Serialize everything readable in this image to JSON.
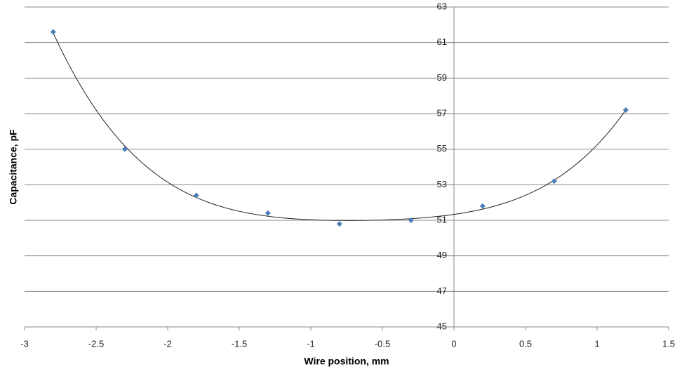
{
  "chart_data": {
    "type": "scatter",
    "x_label": "Wire position, mm",
    "y_label": "Capacitance, pF",
    "x": [
      -2.8,
      -2.3,
      -1.8,
      -1.3,
      -0.8,
      -0.3,
      0.2,
      0.7,
      1.2
    ],
    "series": [
      {
        "color": "#4a7ebb",
        "values": [
          61.6,
          55.0,
          52.4,
          51.4,
          50.8,
          51.0,
          51.8,
          53.2,
          57.2
        ]
      }
    ],
    "xlim": [
      -3,
      1.5
    ],
    "xticks": [
      -3,
      -2.5,
      -2,
      -1.5,
      -1,
      -0.5,
      0,
      0.5,
      1,
      1.5
    ],
    "ylim": [
      45,
      63
    ],
    "yticks": [
      45,
      47,
      49,
      51,
      53,
      55,
      57,
      59,
      61,
      63
    ],
    "grid": true,
    "trendline": true
  }
}
